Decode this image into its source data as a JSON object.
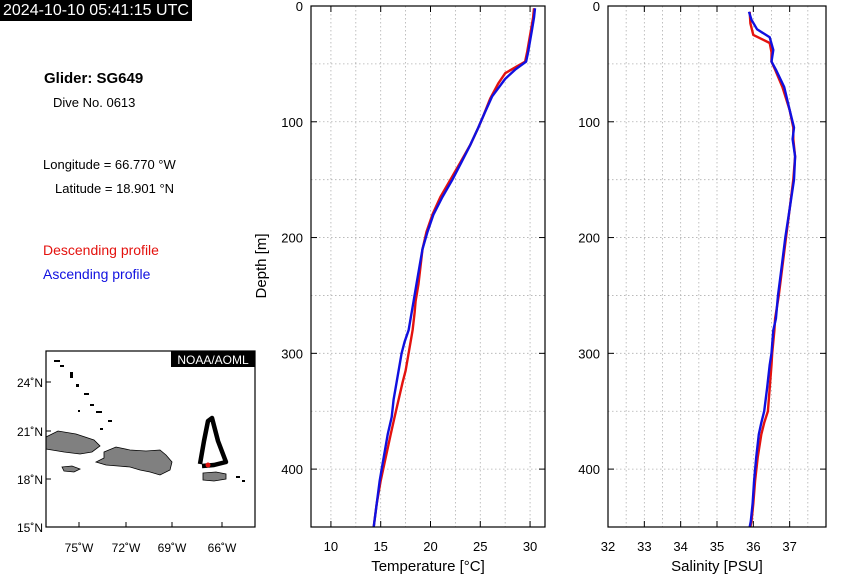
{
  "header": {
    "timestamp": "2024-10-10 05:41:15 UTC"
  },
  "info": {
    "glider": "Glider: SG649",
    "dive": "Dive No. 0613",
    "longitude": "Longitude = 66.770 °W",
    "latitude": "Latitude = 18.901 °N"
  },
  "legend": {
    "descending": "Descending profile",
    "ascending": "Ascending profile",
    "descending_color": "#e4120e",
    "ascending_color": "#1010e0"
  },
  "map": {
    "badge": "NOAA/AOML",
    "lat_ticks": [
      "24˚N",
      "21˚N",
      "18˚N",
      "15˚N"
    ],
    "lon_ticks": [
      "75˚W",
      "72˚W",
      "69˚W",
      "66˚W"
    ],
    "land_color": "#808080",
    "track_color": "#000000",
    "position_color": "#e4120e"
  },
  "chart_data": [
    {
      "type": "line",
      "xlabel": "Temperature [°C]",
      "ylabel": "Depth [m]",
      "xlim": [
        8,
        31.5
      ],
      "ylim": [
        0,
        450
      ],
      "y_inverted": true,
      "xticks": [
        10,
        15,
        20,
        25,
        30
      ],
      "yticks": [
        0,
        100,
        200,
        300,
        400
      ],
      "grid": true,
      "series": [
        {
          "name": "Descending profile",
          "color": "#e4120e",
          "x": [
            30.4,
            30.3,
            30.1,
            29.9,
            29.7,
            29.5,
            27.5,
            26.8,
            26.0,
            25.3,
            24.8,
            24.0,
            23.0,
            22.0,
            21.0,
            20.2,
            19.6,
            19.2,
            19.0,
            18.8,
            18.5,
            18.4,
            18.2,
            18.0,
            17.8,
            17.5,
            17.2,
            16.8,
            16.4,
            16.0,
            15.5,
            15.0,
            14.6,
            14.3
          ],
          "y": [
            2,
            10,
            20,
            30,
            40,
            48,
            58,
            67,
            80,
            95,
            105,
            120,
            135,
            150,
            165,
            180,
            195,
            210,
            225,
            240,
            255,
            265,
            280,
            290,
            300,
            315,
            325,
            340,
            355,
            370,
            390,
            410,
            430,
            450
          ]
        },
        {
          "name": "Ascending profile",
          "color": "#1010e0",
          "x": [
            30.5,
            30.4,
            30.2,
            30.0,
            29.8,
            29.6,
            28.5,
            27.5,
            26.2,
            25.4,
            24.8,
            24.0,
            23.1,
            22.2,
            21.2,
            20.3,
            19.7,
            19.2,
            18.9,
            18.6,
            18.3,
            18.1,
            17.8,
            17.4,
            17.1,
            16.8,
            16.6,
            16.3,
            16.1,
            15.7,
            15.3,
            14.9,
            14.6,
            14.3
          ],
          "y": [
            2,
            10,
            20,
            30,
            40,
            48,
            55,
            63,
            78,
            93,
            105,
            120,
            135,
            150,
            165,
            180,
            195,
            210,
            225,
            240,
            255,
            265,
            280,
            290,
            300,
            315,
            325,
            340,
            355,
            370,
            390,
            410,
            430,
            450
          ]
        }
      ]
    },
    {
      "type": "line",
      "xlabel": "Salinity [PSU]",
      "ylabel": "",
      "xlim": [
        32,
        38
      ],
      "ylim": [
        0,
        450
      ],
      "y_inverted": true,
      "xticks": [
        32,
        33,
        34,
        35,
        36,
        37
      ],
      "yticks": [
        0,
        100,
        200,
        300,
        400
      ],
      "grid": true,
      "series": [
        {
          "name": "Descending profile",
          "color": "#e4120e",
          "x": [
            35.9,
            35.92,
            36.0,
            36.45,
            36.5,
            36.5,
            36.6,
            36.8,
            37.0,
            37.1,
            37.1,
            37.15,
            37.1,
            37.0,
            36.9,
            36.8,
            36.7,
            36.6,
            36.58,
            36.52,
            36.5,
            36.45,
            36.4,
            36.3,
            36.22,
            36.12,
            36.05,
            36.0,
            35.95,
            35.92
          ],
          "y": [
            5,
            15,
            25,
            32,
            40,
            48,
            55,
            70,
            90,
            105,
            115,
            130,
            150,
            175,
            200,
            225,
            250,
            270,
            280,
            300,
            310,
            330,
            350,
            360,
            370,
            390,
            410,
            430,
            445,
            450
          ]
        },
        {
          "name": "Ascending profile",
          "color": "#1010e0",
          "x": [
            35.88,
            35.95,
            36.1,
            36.45,
            36.55,
            36.5,
            36.62,
            36.85,
            37.0,
            37.12,
            37.08,
            37.15,
            37.12,
            37.0,
            36.88,
            36.78,
            36.68,
            36.62,
            36.55,
            36.5,
            36.45,
            36.38,
            36.3,
            36.22,
            36.15,
            36.08,
            36.02,
            35.98,
            35.93,
            35.9
          ],
          "y": [
            5,
            12,
            20,
            27,
            38,
            48,
            55,
            70,
            90,
            105,
            115,
            130,
            150,
            175,
            200,
            225,
            250,
            270,
            280,
            300,
            310,
            330,
            350,
            360,
            370,
            390,
            410,
            430,
            445,
            450
          ]
        }
      ]
    }
  ]
}
